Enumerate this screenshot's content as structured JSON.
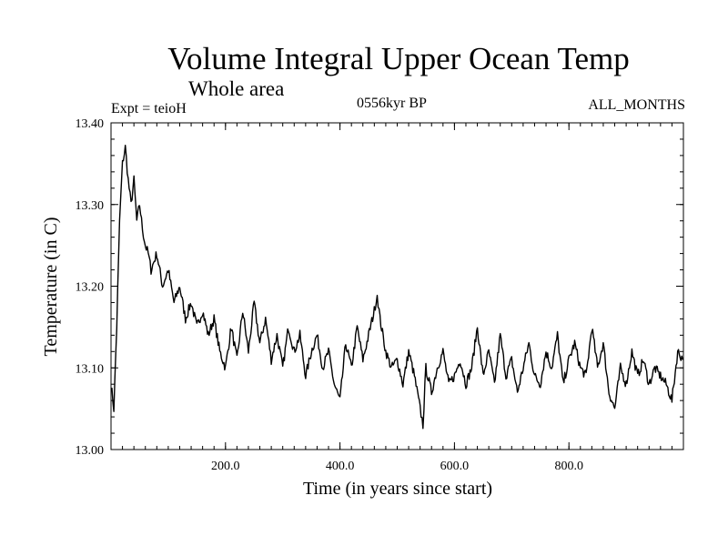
{
  "chart_data": {
    "type": "line",
    "title": "Volume Integral Upper Ocean Temp",
    "subtitle": "Whole area",
    "experiment": "Expt = teioH",
    "period": "0556kyr BP",
    "months": "ALL_MONTHS",
    "xlabel": "Time (in years since start)",
    "ylabel": "Temperature (in C)",
    "xlim": [
      0,
      1000
    ],
    "ylim": [
      13.0,
      13.4
    ],
    "xticks": [
      200,
      400,
      600,
      800
    ],
    "xtick_labels": [
      "200.0",
      "400.0",
      "600.0",
      "800.0"
    ],
    "yticks": [
      13.0,
      13.1,
      13.2,
      13.3,
      13.4
    ],
    "ytick_labels": [
      "13.00",
      "13.10",
      "13.20",
      "13.30",
      "13.40"
    ],
    "grid": false,
    "series": [
      {
        "name": "Volume Integral Upper Ocean Temp",
        "x": [
          0,
          5,
          10,
          15,
          20,
          25,
          30,
          35,
          40,
          45,
          50,
          55,
          60,
          65,
          70,
          80,
          90,
          100,
          110,
          120,
          130,
          140,
          150,
          160,
          170,
          180,
          190,
          200,
          210,
          220,
          230,
          240,
          250,
          260,
          270,
          280,
          290,
          300,
          310,
          320,
          330,
          340,
          350,
          360,
          370,
          380,
          390,
          400,
          410,
          420,
          430,
          440,
          450,
          460,
          465,
          470,
          480,
          490,
          500,
          510,
          520,
          530,
          540,
          545,
          550,
          560,
          570,
          580,
          590,
          600,
          610,
          620,
          630,
          640,
          650,
          660,
          670,
          680,
          690,
          700,
          710,
          720,
          730,
          740,
          750,
          760,
          770,
          780,
          790,
          800,
          810,
          820,
          830,
          840,
          850,
          860,
          870,
          880,
          890,
          900,
          910,
          920,
          930,
          940,
          950,
          960,
          970,
          980,
          990,
          1000
        ],
        "values": [
          13.08,
          13.05,
          13.15,
          13.28,
          13.35,
          13.37,
          13.33,
          13.3,
          13.33,
          13.28,
          13.3,
          13.27,
          13.25,
          13.24,
          13.22,
          13.24,
          13.2,
          13.22,
          13.18,
          13.2,
          13.16,
          13.18,
          13.15,
          13.17,
          13.14,
          13.16,
          13.12,
          13.1,
          13.15,
          13.11,
          13.17,
          13.12,
          13.18,
          13.13,
          13.16,
          13.11,
          13.14,
          13.1,
          13.15,
          13.12,
          13.14,
          13.09,
          13.12,
          13.14,
          13.1,
          13.12,
          13.08,
          13.06,
          13.13,
          13.1,
          13.15,
          13.11,
          13.14,
          13.17,
          13.19,
          13.16,
          13.12,
          13.1,
          13.11,
          13.08,
          13.12,
          13.09,
          13.05,
          13.03,
          13.1,
          13.07,
          13.1,
          13.12,
          13.08,
          13.09,
          13.11,
          13.08,
          13.1,
          13.15,
          13.09,
          13.12,
          13.08,
          13.14,
          13.09,
          13.11,
          13.07,
          13.1,
          13.13,
          13.09,
          13.08,
          13.12,
          13.1,
          13.14,
          13.08,
          13.11,
          13.13,
          13.1,
          13.09,
          13.15,
          13.1,
          13.13,
          13.07,
          13.05,
          13.1,
          13.08,
          13.12,
          13.09,
          13.11,
          13.08,
          13.1,
          13.09,
          13.08,
          13.06,
          13.12,
          13.11
        ]
      }
    ]
  }
}
